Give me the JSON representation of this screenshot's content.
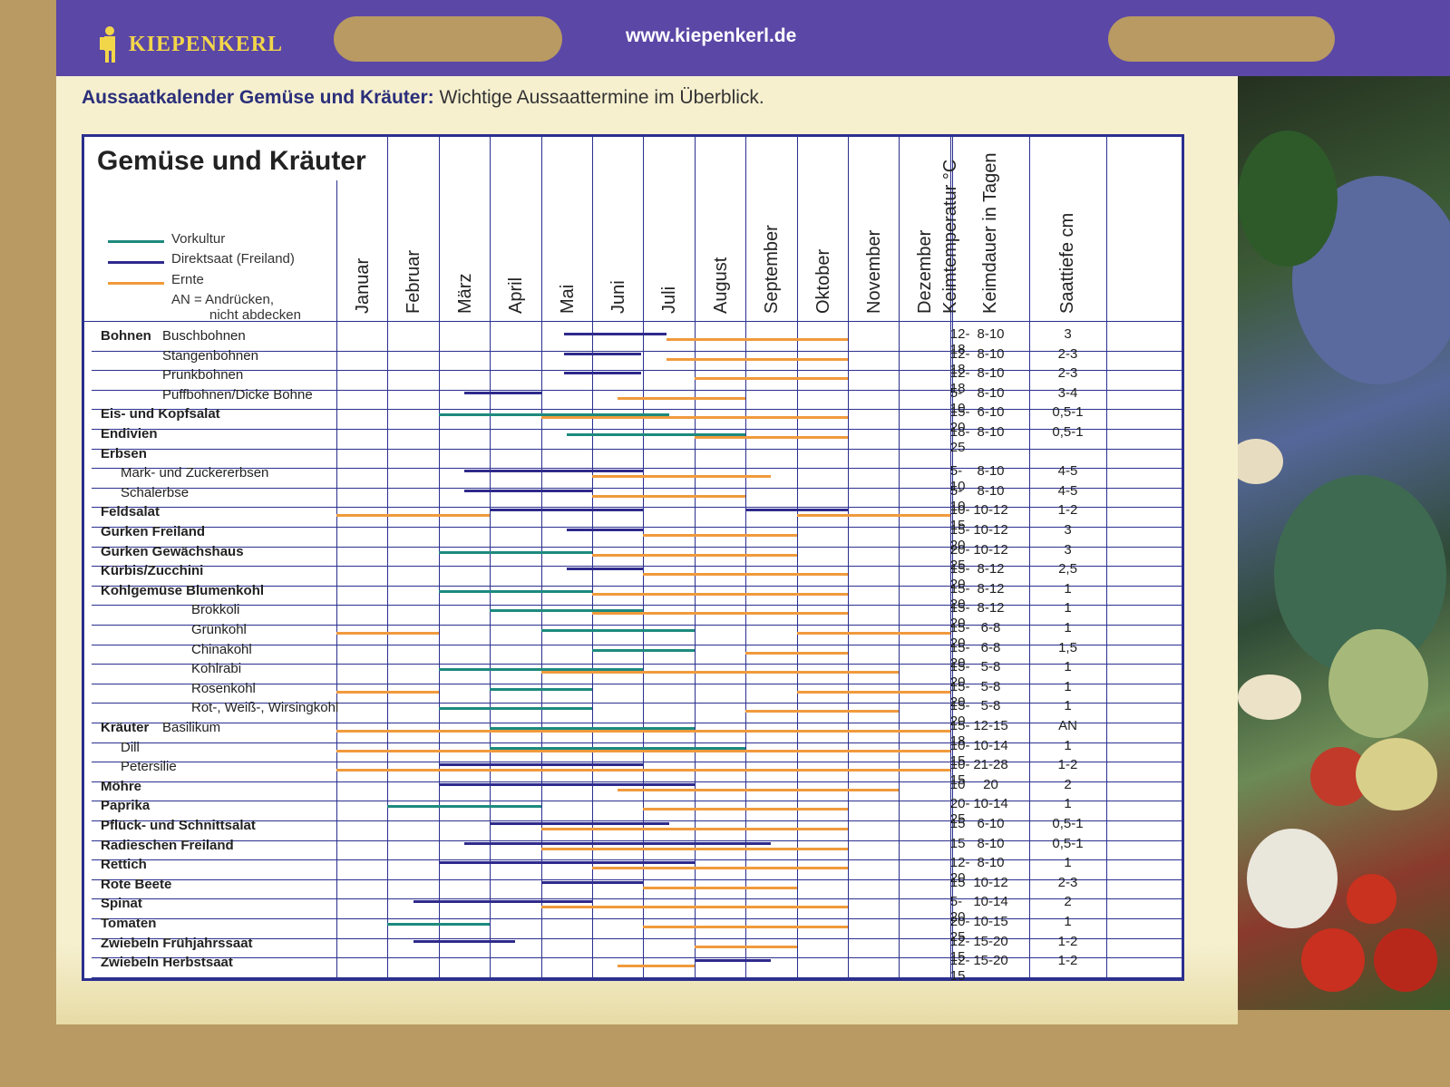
{
  "brand": {
    "name": "KIEPENKERL",
    "url": "www.kiepenkerl.de"
  },
  "heading": {
    "bold": "Aussaatkalender Gemüse und Kräuter:",
    "rest": "Wichtige Aussaattermine im Überblick."
  },
  "colors": {
    "vorkultur": "#1d8a7e",
    "direktsaat": "#2e2a8c",
    "ernte": "#f09a3c"
  },
  "chart_data": {
    "type": "table",
    "title": "Gemüse und Kräuter",
    "legend": {
      "vorkultur": "Vorkultur",
      "direktsaat": "Direktsaat (Freiland)",
      "ernte": "Ernte",
      "an_line1": "AN = Andrücken,",
      "an_line2": "nicht abdecken"
    },
    "months": [
      "Januar",
      "Februar",
      "März",
      "April",
      "Mai",
      "Juni",
      "Juli",
      "August",
      "September",
      "Oktober",
      "November",
      "Dezember"
    ],
    "columns": [
      "Keimtemperatur °C",
      "Keimdauer in Tagen",
      "Saattiefe cm"
    ],
    "month_axis": [
      0,
      12
    ],
    "rows": [
      {
        "group": "Bohnen",
        "label": "Buschbohnen",
        "indent": 1,
        "temp": "12-18",
        "days": "8-10",
        "depth": "3",
        "bars": [
          {
            "type": "direktsaat",
            "start": 4.45,
            "end": 6.45
          },
          {
            "type": "ernte",
            "start": 6.45,
            "end": 10.0
          }
        ]
      },
      {
        "label": "Stangenbohnen",
        "indent": 1,
        "temp": "12-18",
        "days": "8-10",
        "depth": "2-3",
        "bars": [
          {
            "type": "direktsaat",
            "start": 4.45,
            "end": 5.95
          },
          {
            "type": "ernte",
            "start": 6.45,
            "end": 10.0
          }
        ]
      },
      {
        "label": "Prunkbohnen",
        "indent": 1,
        "temp": "12-18",
        "days": "8-10",
        "depth": "2-3",
        "bars": [
          {
            "type": "direktsaat",
            "start": 4.45,
            "end": 5.95
          },
          {
            "type": "ernte",
            "start": 7.0,
            "end": 10.0
          }
        ]
      },
      {
        "label": "Puffbohnen/Dicke Bohne",
        "indent": 1,
        "temp": "5-10",
        "days": "8-10",
        "depth": "3-4",
        "bars": [
          {
            "type": "direktsaat",
            "start": 2.5,
            "end": 4.0
          },
          {
            "type": "ernte",
            "start": 5.5,
            "end": 8.0
          }
        ]
      },
      {
        "label": "Eis- und Kopfsalat",
        "bold": true,
        "temp": "15-20",
        "days": "6-10",
        "depth": "0,5-1",
        "bars": [
          {
            "type": "vorkultur",
            "start": 2.0,
            "end": 6.5
          },
          {
            "type": "ernte",
            "start": 4.0,
            "end": 10.0
          }
        ]
      },
      {
        "label": "Endivien",
        "bold": true,
        "temp": "18-25",
        "days": "8-10",
        "depth": "0,5-1",
        "bars": [
          {
            "type": "vorkultur",
            "start": 4.5,
            "end": 8.0
          },
          {
            "type": "ernte",
            "start": 7.0,
            "end": 10.0
          }
        ]
      },
      {
        "label": "Erbsen",
        "bold": true,
        "temp": "",
        "days": "",
        "depth": "",
        "bars": []
      },
      {
        "label": "Mark- und Zuckererbsen",
        "indent": 2,
        "temp": "5-10",
        "days": "8-10",
        "depth": "4-5",
        "bars": [
          {
            "type": "direktsaat",
            "start": 2.5,
            "end": 6.0
          },
          {
            "type": "ernte",
            "start": 5.0,
            "end": 8.5
          }
        ]
      },
      {
        "label": "Schalerbse",
        "indent": 2,
        "temp": "5-10",
        "days": "8-10",
        "depth": "4-5",
        "bars": [
          {
            "type": "direktsaat",
            "start": 2.5,
            "end": 5.0
          },
          {
            "type": "ernte",
            "start": 5.0,
            "end": 8.0
          }
        ]
      },
      {
        "label": "Feldsalat",
        "bold": true,
        "temp": "10-15",
        "days": "10-12",
        "depth": "1-2",
        "bars": [
          {
            "type": "ernte",
            "start": 0.0,
            "end": 3.0
          },
          {
            "type": "direktsaat",
            "start": 3.0,
            "end": 6.0
          },
          {
            "type": "direktsaat",
            "start": 8.0,
            "end": 10.0
          },
          {
            "type": "ernte",
            "start": 9.0,
            "end": 12.0
          }
        ]
      },
      {
        "label": "Gurken Freiland",
        "bold": true,
        "temp": "15-20",
        "days": "10-12",
        "depth": "3",
        "bars": [
          {
            "type": "direktsaat",
            "start": 4.5,
            "end": 6.0
          },
          {
            "type": "ernte",
            "start": 6.0,
            "end": 9.0
          }
        ]
      },
      {
        "label": "Gurken Gewächshaus",
        "bold": true,
        "temp": "20-25",
        "days": "10-12",
        "depth": "3",
        "bars": [
          {
            "type": "vorkultur",
            "start": 2.0,
            "end": 5.0
          },
          {
            "type": "ernte",
            "start": 5.0,
            "end": 9.0
          }
        ]
      },
      {
        "label": "Kürbis/Zucchini",
        "bold": true,
        "temp": "15-20",
        "days": "8-12",
        "depth": "2,5",
        "bars": [
          {
            "type": "direktsaat",
            "start": 4.5,
            "end": 6.0
          },
          {
            "type": "ernte",
            "start": 6.0,
            "end": 10.0
          }
        ]
      },
      {
        "label": "Kohlgemüse Blumenkohl",
        "bold": true,
        "temp": "15-20",
        "days": "8-12",
        "depth": "1",
        "bars": [
          {
            "type": "vorkultur",
            "start": 2.0,
            "end": 5.0
          },
          {
            "type": "ernte",
            "start": 5.0,
            "end": 10.0
          }
        ]
      },
      {
        "label": "Brokkoli",
        "indent": 3,
        "temp": "15-20",
        "days": "8-12",
        "depth": "1",
        "bars": [
          {
            "type": "vorkultur",
            "start": 3.0,
            "end": 6.0
          },
          {
            "type": "ernte",
            "start": 5.0,
            "end": 10.0
          }
        ]
      },
      {
        "label": "Grünkohl",
        "indent": 3,
        "temp": "15-20",
        "days": "6-8",
        "depth": "1",
        "bars": [
          {
            "type": "ernte",
            "start": 0.0,
            "end": 2.0
          },
          {
            "type": "vorkultur",
            "start": 4.0,
            "end": 7.0
          },
          {
            "type": "ernte",
            "start": 9.0,
            "end": 12.0
          }
        ]
      },
      {
        "label": "Chinakohl",
        "indent": 3,
        "temp": "15-20",
        "days": "6-8",
        "depth": "1,5",
        "bars": [
          {
            "type": "vorkultur",
            "start": 5.0,
            "end": 7.0
          },
          {
            "type": "ernte",
            "start": 8.0,
            "end": 10.0
          }
        ]
      },
      {
        "label": "Kohlrabi",
        "indent": 3,
        "temp": "15-20",
        "days": "5-8",
        "depth": "1",
        "bars": [
          {
            "type": "vorkultur",
            "start": 2.0,
            "end": 6.0
          },
          {
            "type": "ernte",
            "start": 4.0,
            "end": 11.0
          }
        ]
      },
      {
        "label": "Rosenkohl",
        "indent": 3,
        "temp": "15-20",
        "days": "5-8",
        "depth": "1",
        "bars": [
          {
            "type": "ernte",
            "start": 0.0,
            "end": 2.0
          },
          {
            "type": "vorkultur",
            "start": 3.0,
            "end": 5.0
          },
          {
            "type": "ernte",
            "start": 9.0,
            "end": 12.0
          }
        ]
      },
      {
        "label": "Rot-, Weiß-, Wirsingkohl",
        "indent": 3,
        "temp": "15-20",
        "days": "5-8",
        "depth": "1",
        "bars": [
          {
            "type": "vorkultur",
            "start": 2.0,
            "end": 5.0
          },
          {
            "type": "ernte",
            "start": 8.0,
            "end": 11.0
          }
        ]
      },
      {
        "group": "Kräuter",
        "label": "Basilikum",
        "indent": 1,
        "temp": "15-18",
        "days": "12-15",
        "depth": "AN",
        "bars": [
          {
            "type": "vorkultur",
            "start": 3.0,
            "end": 7.0
          },
          {
            "type": "ernte",
            "start": 0.0,
            "end": 12.0
          }
        ]
      },
      {
        "label": "Dill",
        "indent": 2,
        "temp": "10-15",
        "days": "10-14",
        "depth": "1",
        "bars": [
          {
            "type": "vorkultur",
            "start": 3.0,
            "end": 8.0
          },
          {
            "type": "ernte",
            "start": 0.0,
            "end": 12.0
          }
        ]
      },
      {
        "label": "Petersilie",
        "indent": 2,
        "temp": "10-15",
        "days": "21-28",
        "depth": "1-2",
        "bars": [
          {
            "type": "direktsaat",
            "start": 2.0,
            "end": 6.0
          },
          {
            "type": "ernte",
            "start": 0.0,
            "end": 12.0
          }
        ]
      },
      {
        "label": "Möhre",
        "bold": true,
        "temp": "10",
        "days": "20",
        "depth": "2",
        "bars": [
          {
            "type": "direktsaat",
            "start": 2.0,
            "end": 7.0
          },
          {
            "type": "ernte",
            "start": 5.5,
            "end": 11.0
          }
        ]
      },
      {
        "label": "Paprika",
        "bold": true,
        "temp": "20-25",
        "days": "10-14",
        "depth": "1",
        "bars": [
          {
            "type": "vorkultur",
            "start": 1.0,
            "end": 4.0
          },
          {
            "type": "ernte",
            "start": 6.0,
            "end": 10.0
          }
        ]
      },
      {
        "label": "Pflück- und Schnittsalat",
        "bold": true,
        "temp": "15",
        "days": "6-10",
        "depth": "0,5-1",
        "bars": [
          {
            "type": "direktsaat",
            "start": 3.0,
            "end": 6.5
          },
          {
            "type": "ernte",
            "start": 4.0,
            "end": 10.0
          }
        ]
      },
      {
        "label": "Radieschen Freiland",
        "bold": true,
        "temp": "15",
        "days": "8-10",
        "depth": "0,5-1",
        "bars": [
          {
            "type": "direktsaat",
            "start": 2.5,
            "end": 8.5
          },
          {
            "type": "ernte",
            "start": 4.0,
            "end": 10.0
          }
        ]
      },
      {
        "label": "Rettich",
        "bold": true,
        "temp": "12-20",
        "days": "8-10",
        "depth": "1",
        "bars": [
          {
            "type": "direktsaat",
            "start": 2.0,
            "end": 7.0
          },
          {
            "type": "ernte",
            "start": 5.0,
            "end": 10.0
          }
        ]
      },
      {
        "label": "Rote Beete",
        "bold": true,
        "temp": "15",
        "days": "10-12",
        "depth": "2-3",
        "bars": [
          {
            "type": "direktsaat",
            "start": 4.0,
            "end": 6.0
          },
          {
            "type": "ernte",
            "start": 6.0,
            "end": 9.0
          }
        ]
      },
      {
        "label": "Spinat",
        "bold": true,
        "temp": "5-20",
        "days": "10-14",
        "depth": "2",
        "bars": [
          {
            "type": "direktsaat",
            "start": 1.5,
            "end": 5.0
          },
          {
            "type": "ernte",
            "start": 4.0,
            "end": 10.0
          }
        ]
      },
      {
        "label": "Tomaten",
        "bold": true,
        "temp": "20-25",
        "days": "10-15",
        "depth": "1",
        "bars": [
          {
            "type": "vorkultur",
            "start": 1.0,
            "end": 3.0
          },
          {
            "type": "ernte",
            "start": 6.0,
            "end": 10.0
          }
        ]
      },
      {
        "label": "Zwiebeln Frühjahrssaat",
        "bold": true,
        "temp": "12-15",
        "days": "15-20",
        "depth": "1-2",
        "bars": [
          {
            "type": "direktsaat",
            "start": 1.5,
            "end": 3.5
          },
          {
            "type": "ernte",
            "start": 7.0,
            "end": 9.0
          }
        ]
      },
      {
        "label": "Zwiebeln Herbstsaat",
        "bold": true,
        "temp": "12-15",
        "days": "15-20",
        "depth": "1-2",
        "bars": [
          {
            "type": "ernte",
            "start": 5.5,
            "end": 7.0
          },
          {
            "type": "direktsaat",
            "start": 7.0,
            "end": 8.5
          }
        ]
      }
    ]
  }
}
